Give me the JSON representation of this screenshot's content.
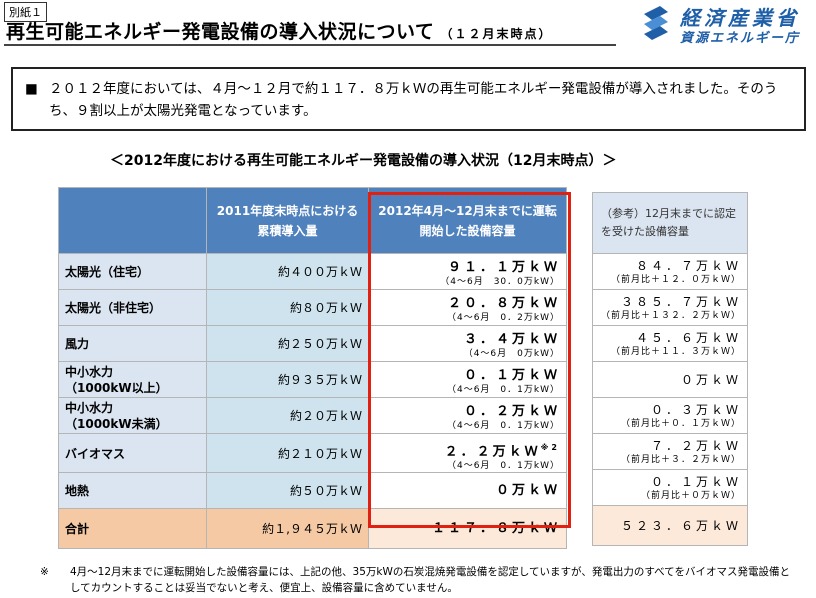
{
  "tag": "別紙１",
  "title": "再生可能エネルギー発電設備の導入状況について",
  "title_sub": "（１２月末時点）",
  "logo": {
    "line1": "経済産業省",
    "line2": "資源エネルギー庁",
    "icon": "meti-logo-icon"
  },
  "summary": {
    "bullet": "■",
    "text": "２０１２年度においては、４月～１２月で約１１７．８万ｋＷの再生可能エネルギー発電設備が導入されました。そのうち、９割以上が太陽光発電となっています。"
  },
  "table_title": "＜2012年度における再生可能エネルギー発電設備の導入状況（12月末時点）＞",
  "table": {
    "headers": {
      "c2": "2011年度末時点における累積導入量",
      "c3": "2012年4月～12月末までに運転開始した設備容量"
    },
    "rows": [
      {
        "label": "太陽光（住宅）",
        "cum": "約４００万ｋＷ",
        "new": "９１．１万ｋＷ",
        "new_sub": "（4～6月　30．0万kW）"
      },
      {
        "label": "太陽光（非住宅）",
        "cum": "約８０万ｋＷ",
        "new": "２０．８万ｋＷ",
        "new_sub": "（4～6月　0．2万kW）"
      },
      {
        "label": "風力",
        "cum": "約２５０万ｋＷ",
        "new": "３．４万ｋＷ",
        "new_sub": "（4～6月　0万kW）"
      },
      {
        "label": "中小水力",
        "label2": "（1000kW以上）",
        "cum": "約９３５万ｋＷ",
        "new": "０．１万ｋＷ",
        "new_sub": "（4～6月　0．1万kW）"
      },
      {
        "label": "中小水力",
        "label2": "（1000kW未満）",
        "cum": "約２０万ｋＷ",
        "new": "０．２万ｋＷ",
        "new_sub": "（4～6月　0．1万kW）"
      },
      {
        "label": "バイオマス",
        "cum": "約２１０万ｋＷ",
        "new": "２．２万ｋＷ",
        "new_sup": "※2",
        "new_sub": "（4～6月　0．1万kW）"
      },
      {
        "label": "地熱",
        "cum": "約５０万ｋＷ",
        "new": "０万ｋＷ"
      }
    ],
    "total": {
      "label": "合計",
      "cum": "約１,９４５万ｋＷ",
      "new": "１１７．８万ｋＷ"
    }
  },
  "reference": {
    "header": "（参考）12月末までに認定を受けた設備容量",
    "rows": [
      {
        "value": "８４．７万ｋＷ",
        "sub": "（前月比＋１２．０万ｋＷ）"
      },
      {
        "value": "３８５．７万ｋＷ",
        "sub": "（前月比＋１３２．２万ｋＷ）"
      },
      {
        "value": "４５．６万ｋＷ",
        "sub": "（前月比＋１１．３万ｋＷ）"
      },
      {
        "value": "０万ｋＷ"
      },
      {
        "value": "０．３万ｋＷ",
        "sub": "（前月比＋０．１万ｋＷ）"
      },
      {
        "value": "７．２万ｋＷ",
        "sub": "（前月比＋３．２万ｋＷ）"
      },
      {
        "value": "０．１万ｋＷ",
        "sub": "（前月比＋０万ｋＷ）"
      }
    ],
    "total": "５２３．６万ｋＷ"
  },
  "note": {
    "mark": "※",
    "text": "4月～12月末までに運転開始した設備容量には、上記の他、35万kWの石炭混焼発電設備を認定していますが、発電出力のすべてをバイオマス発電設備としてカウントすることは妥当でないと考え、便宜上、設備容量に含めていません。"
  },
  "colors": {
    "header_blue": "#4f81bd",
    "highlight_red": "#e02010",
    "logo_blue": "#1f5fa8",
    "total_orange": "#f5c9a4"
  }
}
